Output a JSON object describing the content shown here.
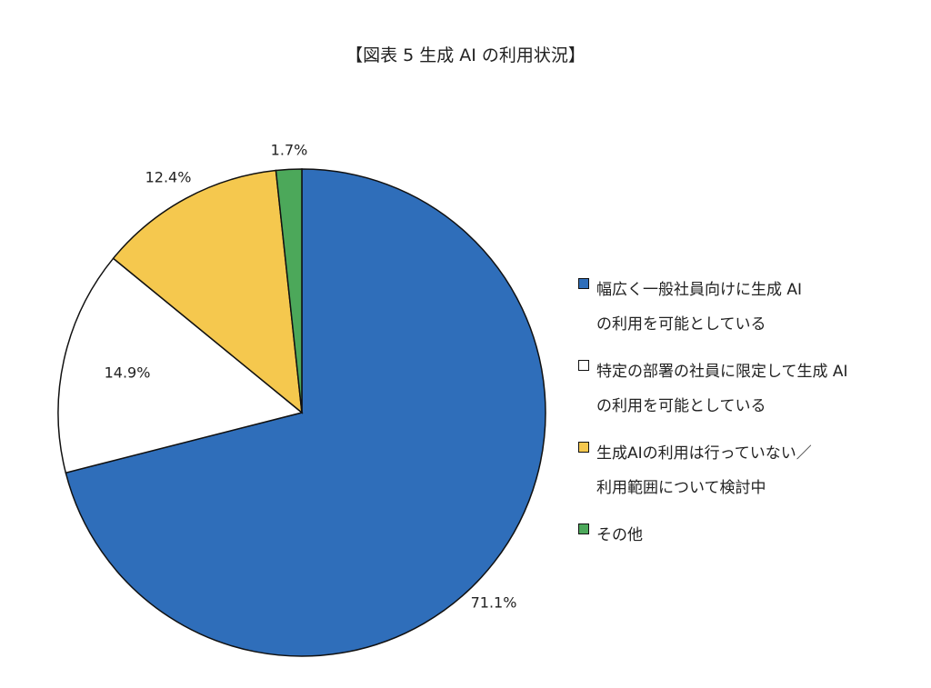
{
  "chart_data": {
    "type": "pie",
    "title": "【図表 5 生成 AI の利用状況】",
    "start": "top",
    "direction": "clockwise",
    "legend_position": "right",
    "slices": [
      {
        "label_lines": [
          "幅広く一般社員向けに生成 AI",
          "の利用を可能としている"
        ],
        "value": 71.1,
        "data_label": "71.1%",
        "color": "#2F6EBA"
      },
      {
        "label_lines": [
          "特定の部署の社員に限定して生成 AI",
          "の利用を可能としている"
        ],
        "value": 14.9,
        "data_label": "14.9%",
        "color": "#FFFFFF"
      },
      {
        "label_lines": [
          "生成AIの利用は行っていない／",
          "利用範囲について検討中"
        ],
        "value": 12.4,
        "data_label": "12.4%",
        "color": "#F5C84E"
      },
      {
        "label_lines": [
          "その他"
        ],
        "value": 1.7,
        "data_label": "1.7%",
        "color": "#4CA85A"
      }
    ]
  }
}
